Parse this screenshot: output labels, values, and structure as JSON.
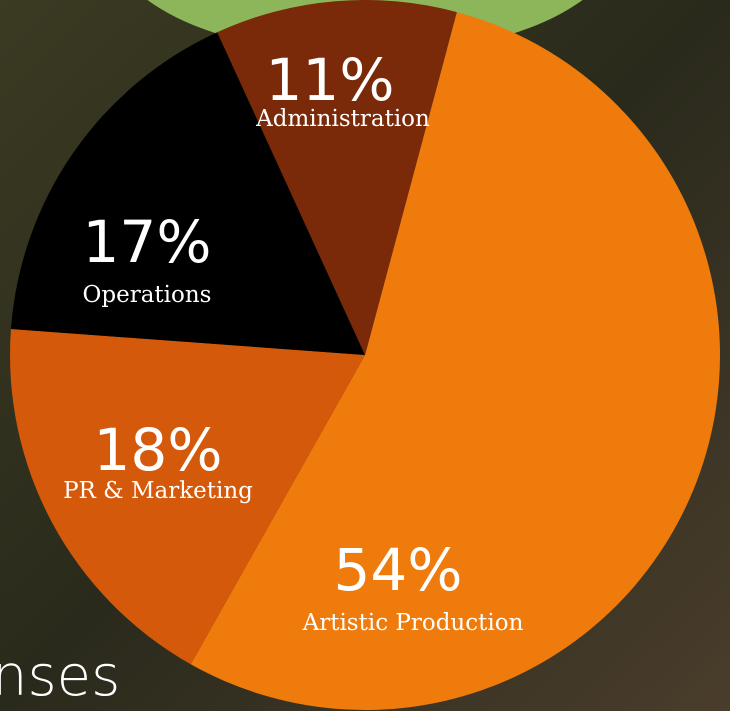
{
  "chart_data": {
    "type": "pie",
    "caption": "nses",
    "categories": [
      "Artistic Production",
      "PR & Marketing",
      "Operations",
      "Administration"
    ],
    "values": [
      54,
      18,
      17,
      11
    ],
    "value_labels": [
      "54%",
      "18%",
      "17%",
      "11%"
    ],
    "colors": [
      "#ee7b0c",
      "#d4590a",
      "#000000",
      "#7a2a08"
    ]
  }
}
